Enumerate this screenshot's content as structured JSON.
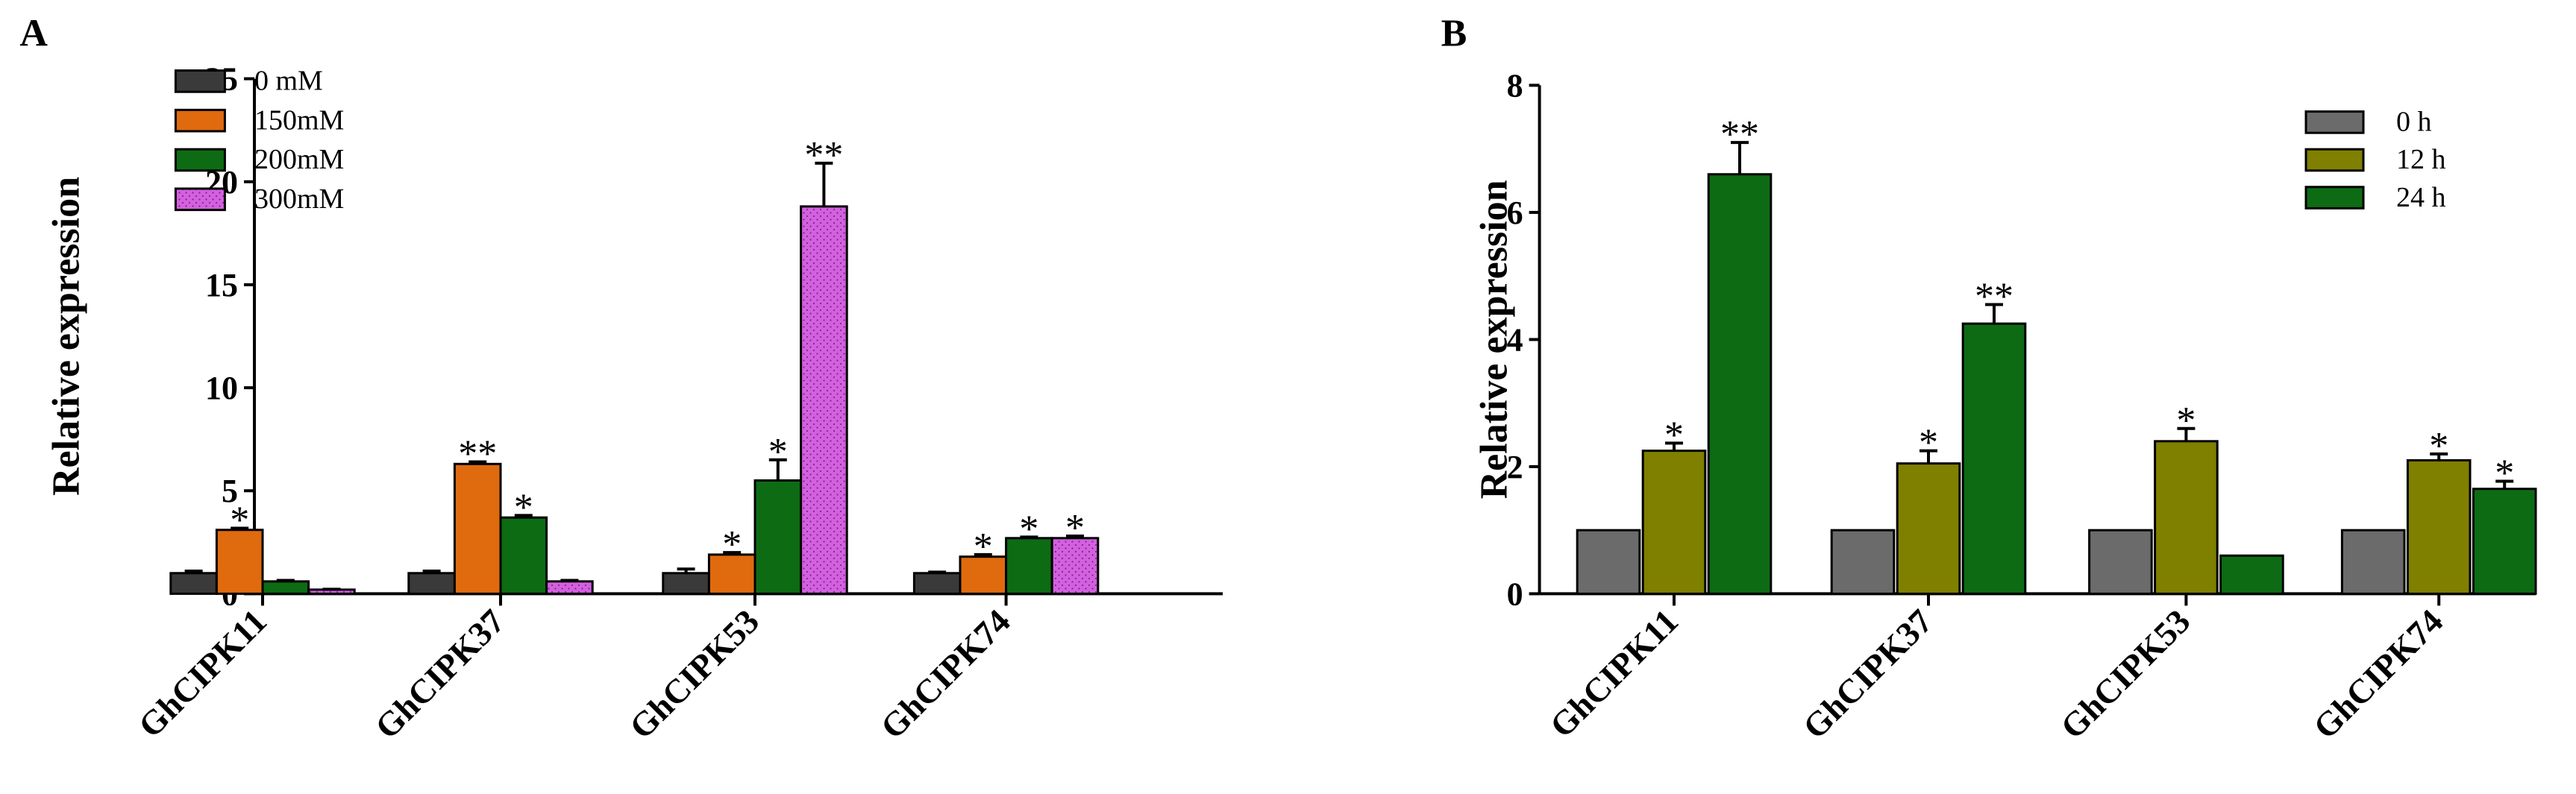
{
  "chart_data": [
    {
      "panel": "A",
      "type": "bar",
      "ylabel": "Relative expression",
      "xlabel": "",
      "ylim": [
        0,
        25
      ],
      "yticks": [
        0,
        5,
        10,
        15,
        20,
        25
      ],
      "categories": [
        "GhCIPK11",
        "GhCIPK37",
        "GhCIPK53",
        "GhCIPK74"
      ],
      "legend_position": "top-left",
      "series": [
        {
          "name": "0 mM",
          "color": "#3a3a3a",
          "pattern": "none",
          "values": [
            1.0,
            1.0,
            1.0,
            1.0
          ],
          "errors": [
            0.1,
            0.1,
            0.2,
            0.05
          ],
          "sig": [
            "",
            "",
            "",
            ""
          ]
        },
        {
          "name": "150mM",
          "color": "#e06a0e",
          "pattern": "none",
          "values": [
            3.1,
            6.3,
            1.9,
            1.8
          ],
          "errors": [
            0.08,
            0.1,
            0.1,
            0.1
          ],
          "sig": [
            "*",
            "**",
            "*",
            "*"
          ]
        },
        {
          "name": "200mM",
          "color": "#0d6b14",
          "pattern": "none",
          "values": [
            0.6,
            3.7,
            5.5,
            2.7
          ],
          "errors": [
            0.05,
            0.1,
            1.0,
            0.05
          ],
          "sig": [
            "",
            "*",
            "*",
            "*"
          ]
        },
        {
          "name": "300mM",
          "color": "#d460e0",
          "pattern": "dots",
          "values": [
            0.2,
            0.6,
            18.8,
            2.7
          ],
          "errors": [
            0.02,
            0.05,
            2.1,
            0.1
          ],
          "sig": [
            "",
            "",
            "**",
            "*"
          ]
        }
      ]
    },
    {
      "panel": "B",
      "type": "bar",
      "ylabel": "Relative expression",
      "xlabel": "",
      "ylim": [
        0,
        8
      ],
      "yticks": [
        0,
        2,
        4,
        6,
        8
      ],
      "categories": [
        "GhCIPK11",
        "GhCIPK37",
        "GhCIPK53",
        "GhCIPK74"
      ],
      "legend_position": "top-right",
      "series": [
        {
          "name": "0 h",
          "color": "#6b6b6b",
          "pattern": "none",
          "values": [
            1.0,
            1.0,
            1.0,
            1.0
          ],
          "errors": [
            0,
            0,
            0,
            0
          ],
          "sig": [
            "",
            "",
            "",
            ""
          ]
        },
        {
          "name": "12 h",
          "color": "#7f7f00",
          "pattern": "none",
          "values": [
            2.25,
            2.05,
            2.4,
            2.1
          ],
          "errors": [
            0.12,
            0.2,
            0.2,
            0.1
          ],
          "sig": [
            "*",
            "*",
            "*",
            "*"
          ]
        },
        {
          "name": "24 h",
          "color": "#0d6b14",
          "pattern": "none",
          "values": [
            6.6,
            4.25,
            0.6,
            1.65
          ],
          "errors": [
            0.5,
            0.3,
            0,
            0.12
          ],
          "sig": [
            "**",
            "**",
            "",
            "*"
          ]
        }
      ]
    }
  ]
}
